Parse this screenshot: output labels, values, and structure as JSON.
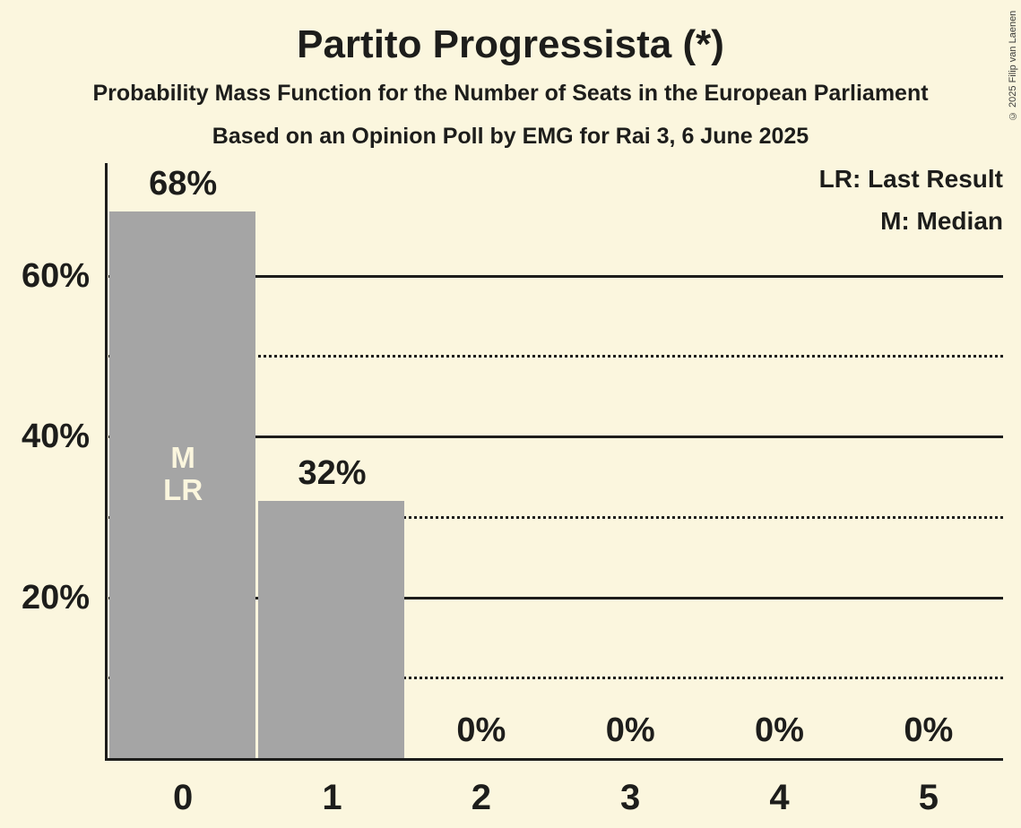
{
  "title": "Partito Progressista (*)",
  "subtitle1": "Probability Mass Function for the Number of Seats in the European Parliament",
  "subtitle2": "Based on an Opinion Poll by EMG for Rai 3, 6 June 2025",
  "copyright": "© 2025 Filip van Laenen",
  "legend": {
    "lr": "LR: Last Result",
    "m": "M: Median"
  },
  "colors": {
    "background": "#fbf6de",
    "bar": "#a5a5a5",
    "text": "#1d1d1b"
  },
  "chart_data": {
    "type": "bar",
    "title": "Partito Progressista (*)",
    "categories": [
      "0",
      "1",
      "2",
      "3",
      "4",
      "5"
    ],
    "values": [
      68,
      32,
      0,
      0,
      0,
      0
    ],
    "value_labels": [
      "68%",
      "32%",
      "0%",
      "0%",
      "0%",
      "0%"
    ],
    "ylim": [
      0,
      74
    ],
    "y_axis_ticks": [
      {
        "value": 10,
        "label": "",
        "style": "dotted"
      },
      {
        "value": 20,
        "label": "20%",
        "style": "solid"
      },
      {
        "value": 30,
        "label": "",
        "style": "dotted"
      },
      {
        "value": 40,
        "label": "40%",
        "style": "solid"
      },
      {
        "value": 50,
        "label": "",
        "style": "dotted"
      },
      {
        "value": 60,
        "label": "60%",
        "style": "solid"
      }
    ],
    "bar_annotations": [
      {
        "bar_index": 0,
        "lines": [
          "M",
          "LR"
        ]
      }
    ],
    "legend_entries": [
      "LR: Last Result",
      "M: Median"
    ],
    "grid": true,
    "legend_position": "top-right"
  }
}
